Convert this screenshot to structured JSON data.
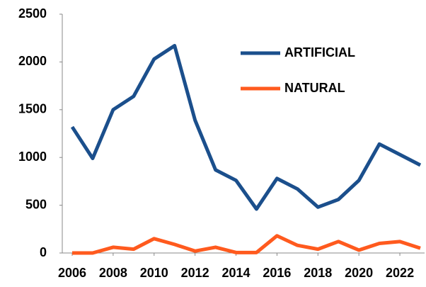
{
  "chart_data": {
    "type": "line",
    "x": [
      2006,
      2007,
      2008,
      2009,
      2010,
      2011,
      2012,
      2013,
      2014,
      2015,
      2016,
      2017,
      2018,
      2019,
      2020,
      2021,
      2022,
      2023
    ],
    "series": [
      {
        "name": "ARTIFICIAL",
        "color": "#1b4f8c",
        "values": [
          1320,
          990,
          1500,
          1640,
          2030,
          2170,
          1390,
          870,
          760,
          460,
          780,
          670,
          480,
          560,
          760,
          1140,
          1030,
          920
        ]
      },
      {
        "name": "NATURAL",
        "color": "#ff5a1e",
        "values": [
          0,
          0,
          60,
          40,
          150,
          90,
          20,
          60,
          5,
          5,
          180,
          80,
          40,
          120,
          30,
          100,
          120,
          50
        ]
      }
    ],
    "xlim": [
      2006,
      2023
    ],
    "xticks": [
      2006,
      2008,
      2010,
      2012,
      2014,
      2016,
      2018,
      2020,
      2022
    ],
    "ylim": [
      0,
      2500
    ],
    "yticks": [
      0,
      500,
      1000,
      1500,
      2000,
      2500
    ],
    "grid": false,
    "legend": "upper right"
  }
}
